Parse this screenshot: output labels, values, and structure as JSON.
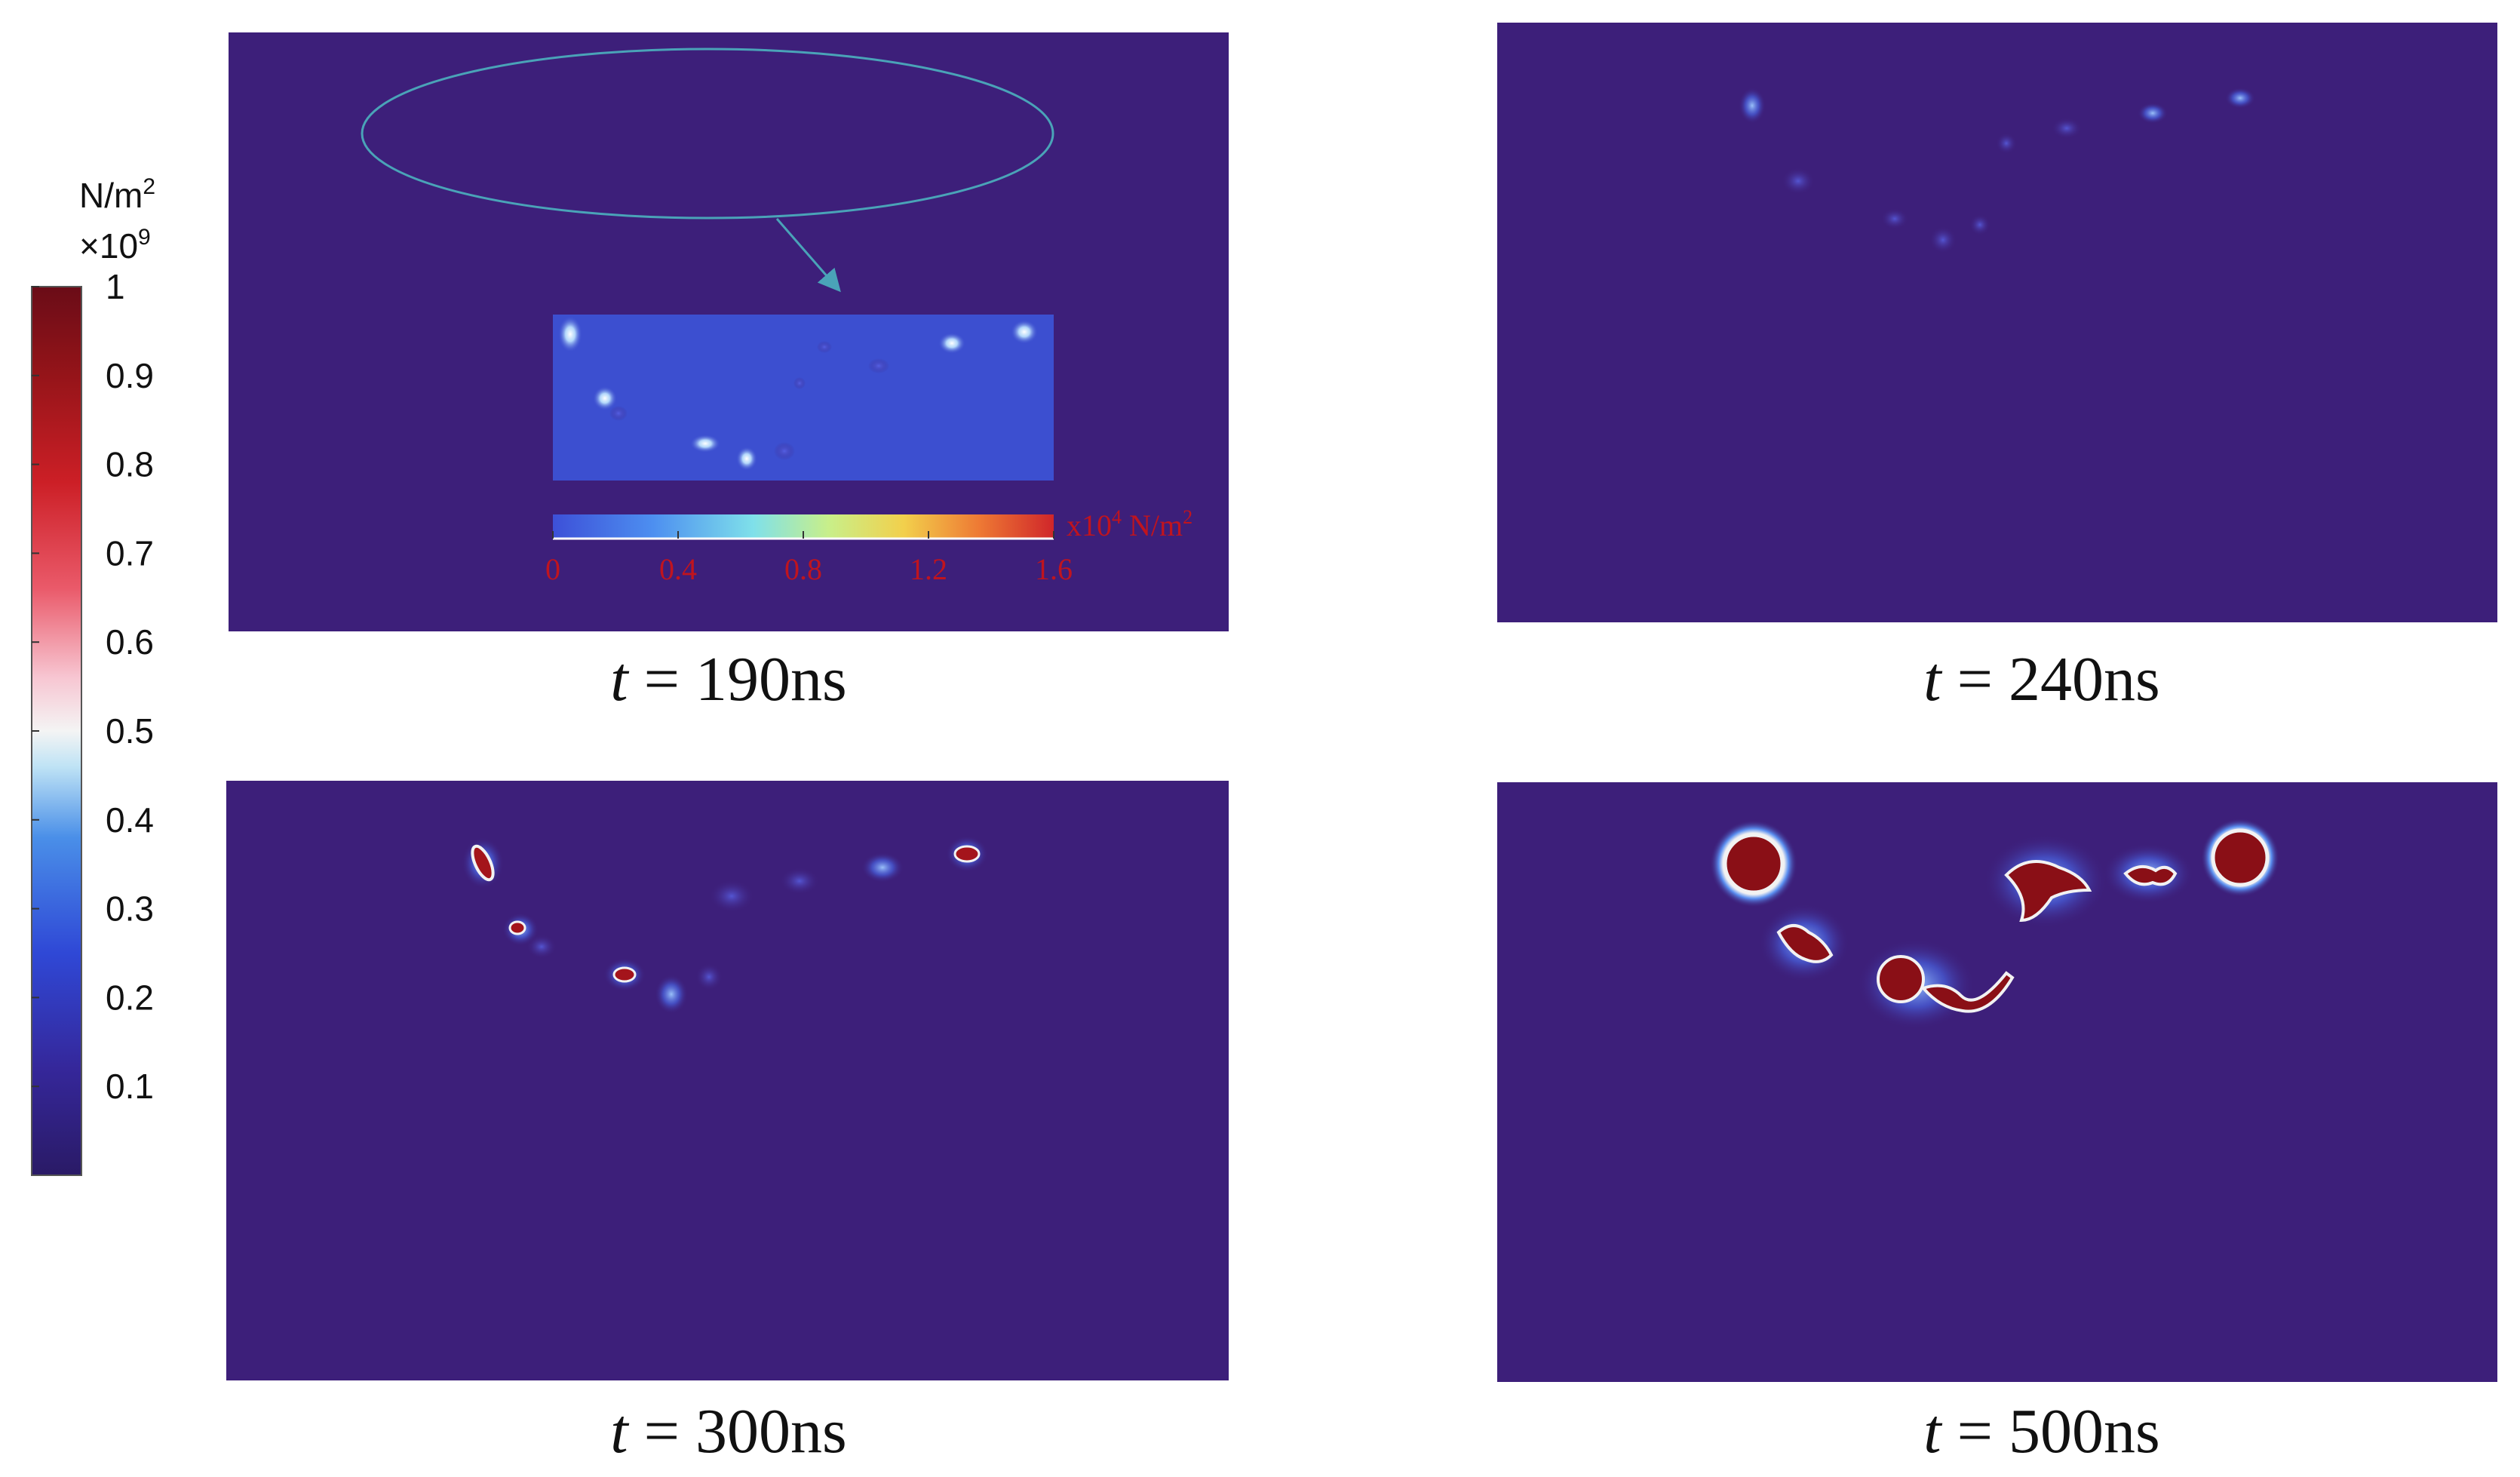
{
  "colors": {
    "background_field": "#3d1f7a",
    "inset_field": "#3c4fd0",
    "highlight_ellipse": "#4aa3b8",
    "inset_label_color": "#c0141e"
  },
  "colorbar": {
    "unit_line1": "N/m",
    "unit_sup1": "2",
    "unit_line2": "×10",
    "unit_sup2": "9",
    "ticks": [
      "1",
      "0.9",
      "0.8",
      "0.7",
      "0.6",
      "0.5",
      "0.4",
      "0.3",
      "0.2",
      "0.1"
    ],
    "range": [
      0,
      1
    ],
    "colormap": "blue-white-red diverging (low = dark indigo, 0.5 = white, high = dark red)"
  },
  "panels": [
    {
      "t_var": "t",
      "eq": " = ",
      "time": "190ns"
    },
    {
      "t_var": "t",
      "eq": " = ",
      "time": "240ns"
    },
    {
      "t_var": "t",
      "eq": " = ",
      "time": "300ns"
    },
    {
      "t_var": "t",
      "eq": " = ",
      "time": "500ns"
    }
  ],
  "inset": {
    "scale_prefix": "x10",
    "scale_exp": "4",
    "scale_unit": " N/m",
    "scale_unit_sup": "2",
    "ticks": [
      "0",
      "0.4",
      "0.8",
      "1.2",
      "1.6"
    ],
    "range": [
      0,
      1.6
    ],
    "colormap": "rainbow (blue → cyan → yellow → red)"
  }
}
